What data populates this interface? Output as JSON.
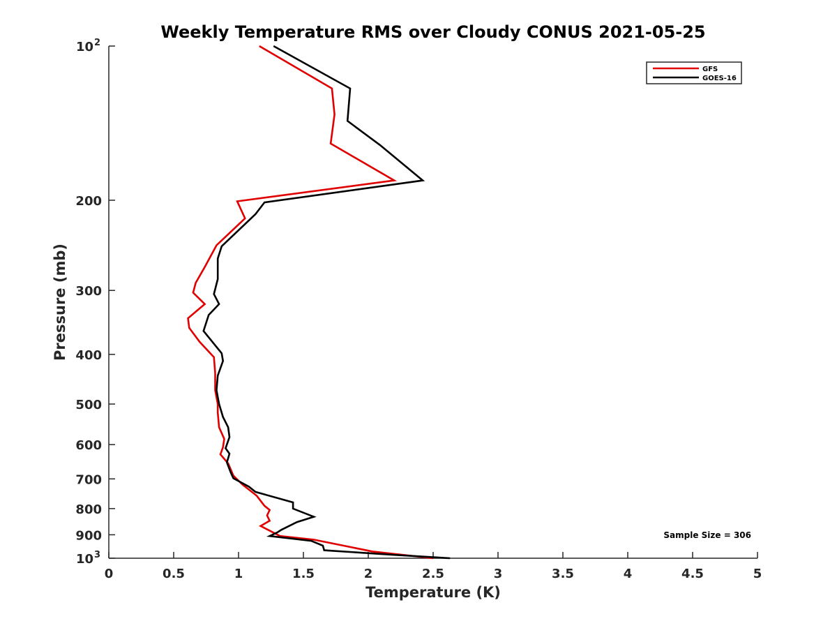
{
  "chart_data": {
    "type": "line",
    "title": "Weekly Temperature RMS over Cloudy CONUS 2021-05-25",
    "xlabel": "Temperature (K)",
    "ylabel": "Pressure (mb)",
    "xlim": [
      0,
      5
    ],
    "ylim": [
      100,
      1000
    ],
    "y_scale": "log",
    "y_reversed": true,
    "x_ticks": [
      {
        "value": 0,
        "label": "0"
      },
      {
        "value": 0.5,
        "label": "0.5"
      },
      {
        "value": 1,
        "label": "1"
      },
      {
        "value": 1.5,
        "label": "1.5"
      },
      {
        "value": 2,
        "label": "2"
      },
      {
        "value": 2.5,
        "label": "2.5"
      },
      {
        "value": 3,
        "label": "3"
      },
      {
        "value": 3.5,
        "label": "3.5"
      },
      {
        "value": 4,
        "label": "4"
      },
      {
        "value": 4.5,
        "label": "4.5"
      },
      {
        "value": 5,
        "label": "5"
      }
    ],
    "y_ticks": [
      {
        "value": 100,
        "label": "10",
        "sup": "2"
      },
      {
        "value": 200,
        "label": "200"
      },
      {
        "value": 300,
        "label": "300"
      },
      {
        "value": 400,
        "label": "400"
      },
      {
        "value": 500,
        "label": "500"
      },
      {
        "value": 600,
        "label": "600"
      },
      {
        "value": 700,
        "label": "700"
      },
      {
        "value": 800,
        "label": "800"
      },
      {
        "value": 900,
        "label": "900"
      },
      {
        "value": 1000,
        "label": "10",
        "sup": "3"
      }
    ],
    "grid": false,
    "legend_position": "top-right",
    "annotation": "Sample Size = 306",
    "series": [
      {
        "name": "GFS",
        "color": "#e00000",
        "x": [
          1.16,
          1.72,
          1.74,
          1.71,
          2.2,
          0.99,
          1.05,
          0.83,
          0.74,
          0.67,
          0.65,
          0.74,
          0.61,
          0.62,
          0.7,
          0.81,
          0.82,
          0.82,
          0.84,
          0.84,
          0.85,
          0.89,
          0.88,
          0.86,
          0.92,
          0.96,
          1.03,
          1.14,
          1.2,
          1.24,
          1.22,
          1.24,
          1.17,
          1.32,
          1.58,
          2.03,
          2.5
        ],
        "y": [
          100,
          121,
          136,
          155,
          183,
          201,
          217,
          245,
          270,
          290,
          303,
          319,
          340,
          355,
          378,
          405,
          435,
          470,
          500,
          520,
          555,
          585,
          607,
          627,
          653,
          690,
          718,
          755,
          790,
          805,
          825,
          845,
          865,
          905,
          920,
          970,
          1000
        ]
      },
      {
        "name": "GOES-16",
        "color": "#000000",
        "x": [
          1.27,
          1.86,
          1.84,
          2.09,
          2.42,
          1.2,
          1.13,
          0.87,
          0.84,
          0.84,
          0.81,
          0.85,
          0.77,
          0.73,
          0.87,
          0.88,
          0.84,
          0.83,
          0.85,
          0.88,
          0.92,
          0.93,
          0.9,
          0.93,
          0.91,
          0.94,
          0.96,
          1.08,
          1.13,
          1.42,
          1.42,
          1.58,
          1.45,
          1.33,
          1.3,
          1.24,
          1.56,
          1.65,
          1.66,
          2.2,
          2.63
        ],
        "y": [
          100,
          121,
          140,
          156,
          183,
          202,
          213,
          246,
          260,
          285,
          305,
          319,
          335,
          360,
          398,
          412,
          440,
          470,
          500,
          530,
          555,
          580,
          610,
          625,
          650,
          680,
          698,
          725,
          742,
          778,
          800,
          830,
          850,
          880,
          890,
          905,
          925,
          945,
          965,
          985,
          1000
        ]
      }
    ]
  }
}
